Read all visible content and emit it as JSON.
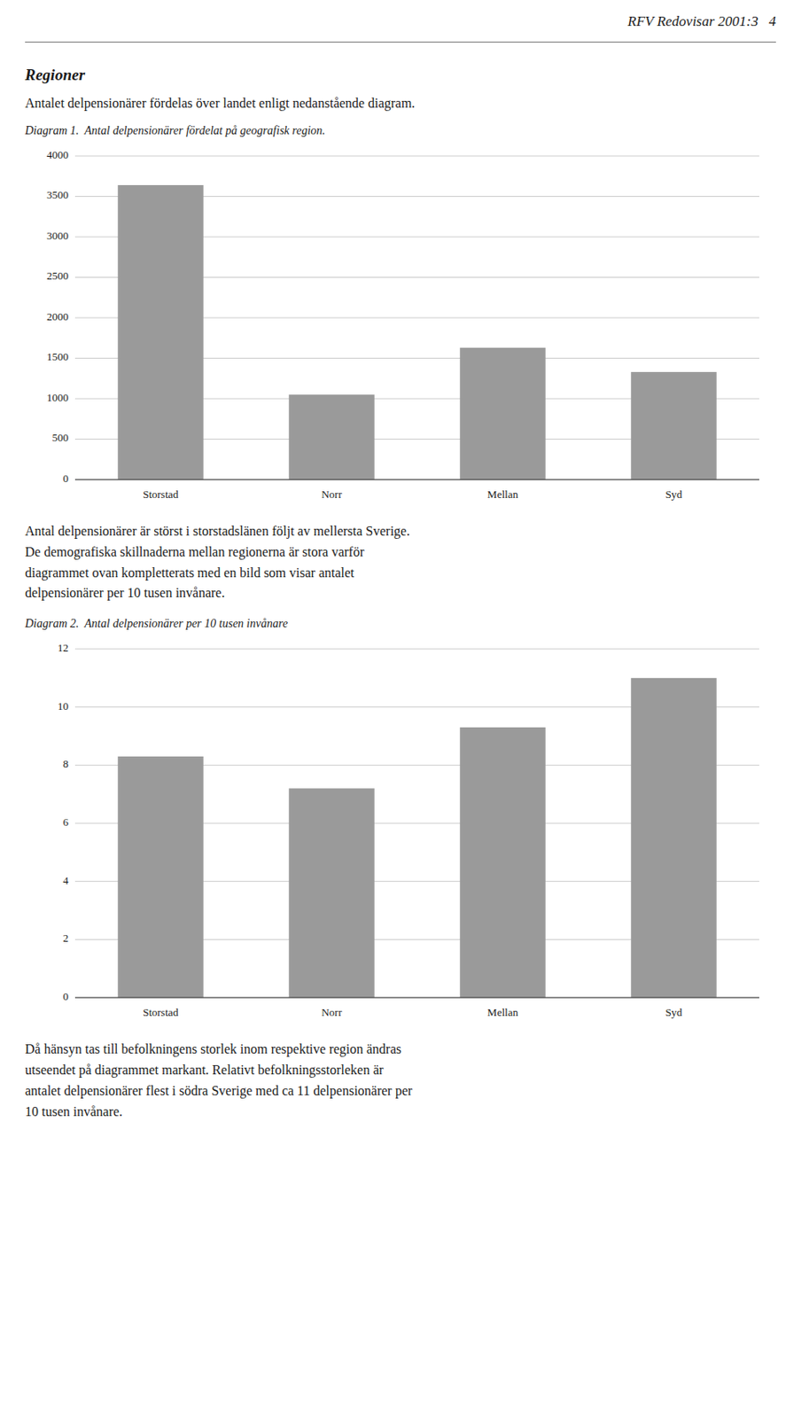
{
  "header_text": "RFV Redovisar 2001:3   4",
  "section_title": "Regioner",
  "section_subtitle": "Antalet delpensionärer fördelas över landet enligt nedanstående diagram.",
  "between_text": "Antal delpensionärer är störst i storstadslänen följt av mellersta Sverige.\nDe demografiska skillnaderna mellan regionerna är stora varför\ndiagrammet ovan kompletterats med en bild som visar antalet\ndelpensionärer per 10 tusen invånare.",
  "footer_text": "Då hänsyn tas till befolkningens storlek inom respektive region ändras\nutseendet på diagrammet markant. Relativt befolkningsstorleken är\nantalet delpensionärer flest i södra Sverige med ca 11 delpensionärer per\n10 tusen invånare.",
  "chart_data": [
    {
      "type": "bar",
      "title": "Diagram 1.  Antal delpensionärer fördelat på geografisk region.",
      "categories": [
        "Storstad",
        "Norr",
        "Mellan",
        "Syd"
      ],
      "values": [
        3640,
        1050,
        1630,
        1330
      ],
      "color": "#9a9a9a",
      "ylim": [
        0,
        4000
      ],
      "yticks": [
        0,
        500,
        1000,
        1500,
        2000,
        2500,
        3000,
        3500,
        4000
      ],
      "grid": true
    },
    {
      "type": "bar",
      "title": "Diagram 2.  Antal delpensionärer per 10 tusen invånare",
      "categories": [
        "Storstad",
        "Norr",
        "Mellan",
        "Syd"
      ],
      "values": [
        8.3,
        7.2,
        9.3,
        11.0
      ],
      "color": "#9a9a9a",
      "ylim": [
        0,
        12
      ],
      "yticks": [
        0,
        2,
        4,
        6,
        8,
        10,
        12
      ],
      "grid": true
    }
  ]
}
